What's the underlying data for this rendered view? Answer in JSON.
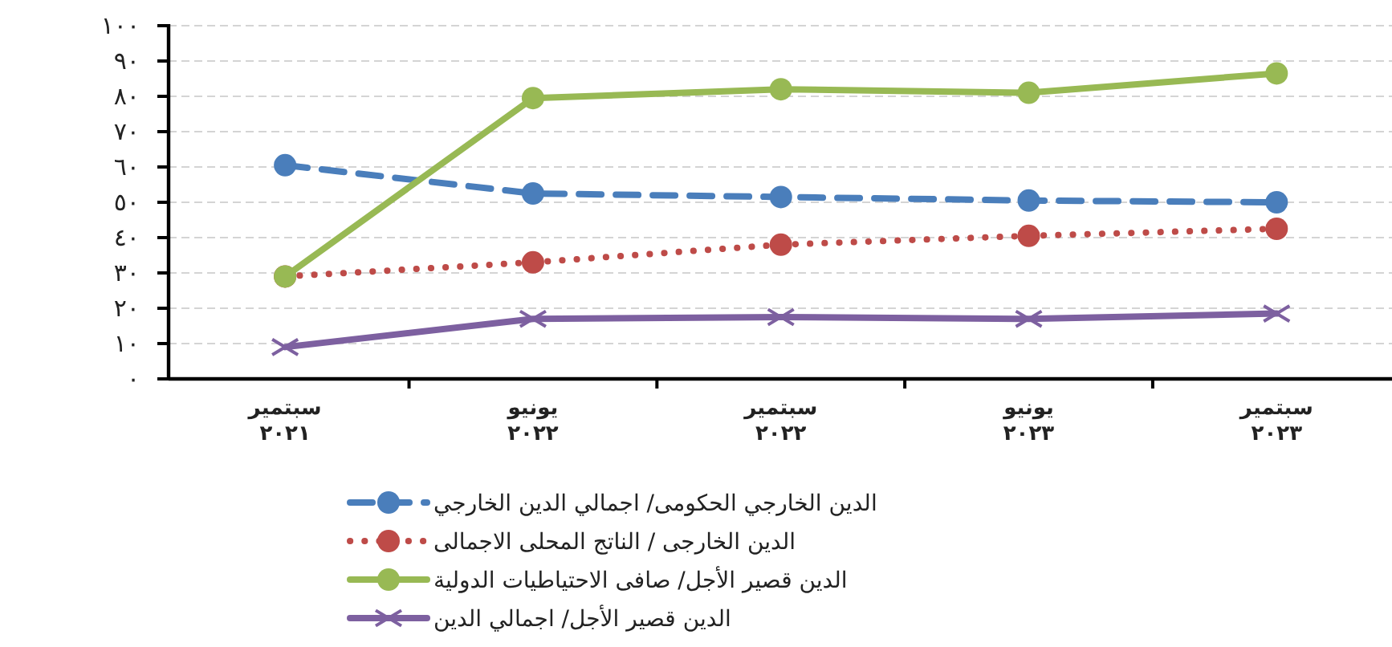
{
  "chart_data": {
    "type": "line",
    "categories": [
      "سبتمير ٢٠٢١",
      "يونيو ٢٠٢٢",
      "سبتمير ٢٠٢٢",
      "يونيو ٢٠٢٣",
      "سبتمير ٢٠٢٣"
    ],
    "series": [
      {
        "name": "الدين الخارجي الحكومى/ اجمالي الدين الخارجي",
        "color": "#4a7ebb",
        "marker": "circle",
        "line_style": "dashed",
        "values": [
          60.5,
          52.5,
          51.5,
          50.5,
          50
        ]
      },
      {
        "name": "الدين الخارجى /  الناتج المحلى الاجمالى",
        "color": "#be4b48",
        "marker": "circle",
        "line_style": "dotted",
        "values": [
          29,
          33,
          38,
          40.5,
          42.5
        ]
      },
      {
        "name": "الدين قصير الأجل/ صافى الاحتياطيات الدولية",
        "color": "#98b954",
        "marker": "circle",
        "line_style": "solid",
        "values": [
          29,
          79.5,
          82,
          81,
          86.5
        ]
      },
      {
        "name": "الدين قصير الأجل/ اجمالي الدين",
        "color": "#7d60a0",
        "marker": "cross",
        "line_style": "solid",
        "values": [
          9,
          17,
          17.5,
          17,
          18.5
        ]
      }
    ],
    "ylim": [
      0,
      100
    ],
    "yticks": [
      {
        "value": 0,
        "label": "٠"
      },
      {
        "value": 10,
        "label": "١٠"
      },
      {
        "value": 20,
        "label": "٢٠"
      },
      {
        "value": 30,
        "label": "٣٠"
      },
      {
        "value": 40,
        "label": "٤٠"
      },
      {
        "value": 50,
        "label": "٥٠"
      },
      {
        "value": 60,
        "label": "٦٠"
      },
      {
        "value": 70,
        "label": "٧٠"
      },
      {
        "value": 80,
        "label": "٨٠"
      },
      {
        "value": 90,
        "label": "٩٠"
      },
      {
        "value": 100,
        "label": "١٠٠"
      }
    ],
    "grid": "y",
    "legend": "bottom"
  }
}
